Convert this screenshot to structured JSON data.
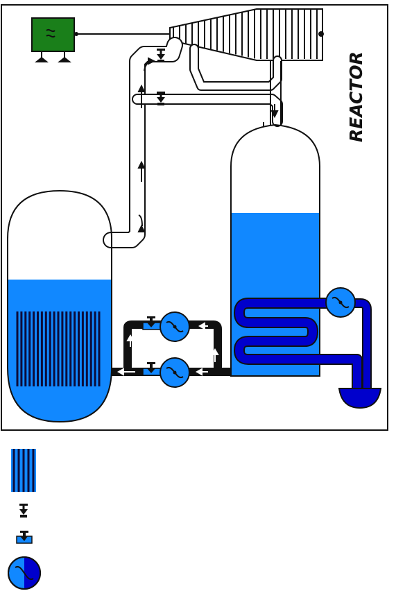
{
  "diagram": {
    "label": "REACTOR",
    "colors": {
      "water": "#1188ff",
      "pipe_dark": "#0000cc",
      "pipe_blue": "#1f4fe0",
      "generator": "#1a7f1a",
      "outline": "#111111",
      "steam_white": "#ffffff"
    },
    "components": {
      "generator": "generator-icon",
      "turbine": "turbine-icon",
      "steam_generator": "steam-generator-vessel",
      "reactor_vessel": "reactor-vessel",
      "condenser_pump": "pump-icon",
      "legend_fuel_rods": "fuel-rods-icon",
      "legend_steam_valve": "steam-valve-icon",
      "legend_water_valve": "water-valve-icon",
      "legend_pump": "pump-icon"
    }
  }
}
